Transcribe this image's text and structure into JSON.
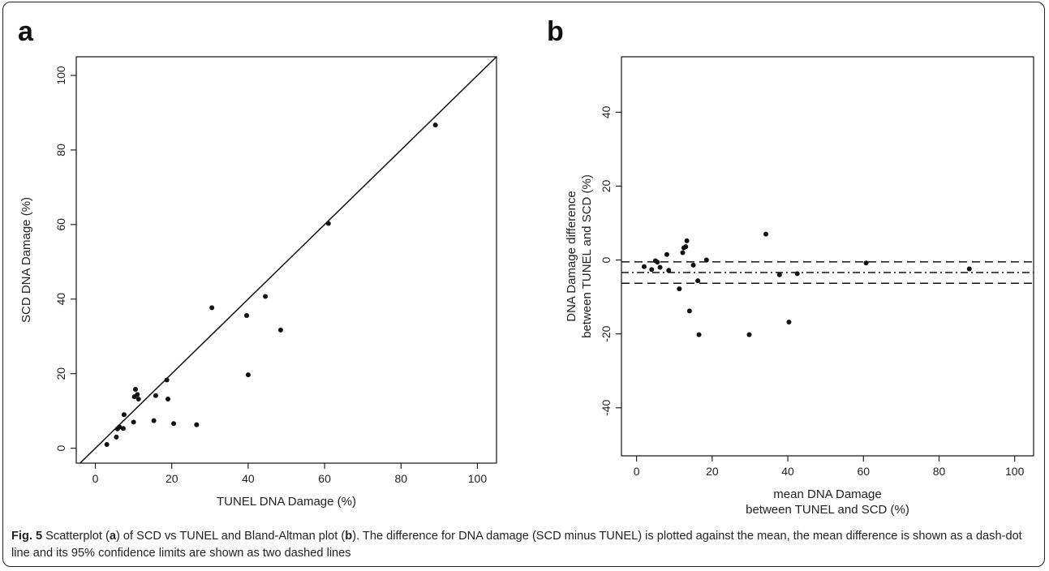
{
  "chart_data": [
    {
      "panel": "a",
      "type": "scatter",
      "xlabel": "TUNEL DNA Damage (%)",
      "ylabel": "SCD DNA Damage (%)",
      "xlim": [
        -5,
        105
      ],
      "ylim": [
        -4,
        105
      ],
      "xticks": [
        0,
        20,
        40,
        60,
        80,
        100
      ],
      "yticks": [
        0,
        20,
        40,
        60,
        80,
        100
      ],
      "grid": false,
      "reference_line": {
        "type": "identity",
        "slope": 1,
        "intercept": 0
      },
      "points": [
        {
          "x": 3,
          "y": 1
        },
        {
          "x": 5.5,
          "y": 3
        },
        {
          "x": 5.8,
          "y": 5.2
        },
        {
          "x": 6.3,
          "y": 5.7
        },
        {
          "x": 7.3,
          "y": 5.3
        },
        {
          "x": 7.5,
          "y": 9
        },
        {
          "x": 10,
          "y": 7
        },
        {
          "x": 10.2,
          "y": 13.8
        },
        {
          "x": 10.5,
          "y": 15.8
        },
        {
          "x": 11,
          "y": 14.4
        },
        {
          "x": 11.3,
          "y": 13.2
        },
        {
          "x": 15.3,
          "y": 7.4
        },
        {
          "x": 15.8,
          "y": 14.1
        },
        {
          "x": 18.7,
          "y": 18.3
        },
        {
          "x": 19,
          "y": 13.2
        },
        {
          "x": 20.5,
          "y": 6.6
        },
        {
          "x": 26.5,
          "y": 6.3
        },
        {
          "x": 30.5,
          "y": 37.7
        },
        {
          "x": 39.6,
          "y": 35.6
        },
        {
          "x": 40,
          "y": 19.7
        },
        {
          "x": 44.5,
          "y": 40.7
        },
        {
          "x": 48.5,
          "y": 31.7
        },
        {
          "x": 61,
          "y": 60.3
        },
        {
          "x": 89,
          "y": 86.7
        }
      ]
    },
    {
      "panel": "b",
      "type": "scatter",
      "xlabel": "mean DNA Damage between TUNEL and SCD (%)",
      "xlabel_lines": [
        "mean DNA Damage",
        "between TUNEL and SCD (%)"
      ],
      "ylabel": "DNA Damage difference between TUNEL and SCD (%)",
      "ylabel_lines": [
        "DNA Damage difference",
        "between TUNEL and SCD (%)"
      ],
      "xlim": [
        -4,
        105
      ],
      "ylim": [
        -53,
        55
      ],
      "xticks": [
        0,
        20,
        40,
        60,
        80,
        100
      ],
      "yticks": [
        -40,
        -20,
        0,
        20,
        40
      ],
      "grid": false,
      "mean_difference": -3.4,
      "limits": [
        -6.3,
        -0.5
      ],
      "points": [
        {
          "x": 2,
          "y": -1.8
        },
        {
          "x": 4,
          "y": -2.6
        },
        {
          "x": 5,
          "y": -0.2
        },
        {
          "x": 5.5,
          "y": -0.6
        },
        {
          "x": 6.2,
          "y": -2
        },
        {
          "x": 8,
          "y": 1.5
        },
        {
          "x": 8.5,
          "y": -2.8
        },
        {
          "x": 11.3,
          "y": -7.8
        },
        {
          "x": 12.2,
          "y": 2
        },
        {
          "x": 12.5,
          "y": 3.3
        },
        {
          "x": 13,
          "y": 3.6
        },
        {
          "x": 13.3,
          "y": 5.2
        },
        {
          "x": 14,
          "y": -13.8
        },
        {
          "x": 15,
          "y": -1.4
        },
        {
          "x": 16.2,
          "y": -5.6
        },
        {
          "x": 16.5,
          "y": -20.2
        },
        {
          "x": 18.5,
          "y": 0
        },
        {
          "x": 29.8,
          "y": -20.2
        },
        {
          "x": 34.2,
          "y": 7
        },
        {
          "x": 37.8,
          "y": -4
        },
        {
          "x": 40.3,
          "y": -16.8
        },
        {
          "x": 42.5,
          "y": -3.7
        },
        {
          "x": 60.7,
          "y": -0.8
        },
        {
          "x": 88,
          "y": -2.4
        }
      ]
    }
  ],
  "caption": {
    "label": "Fig. 5",
    "text": " Scatterplot (a) of SCD vs TUNEL and Bland-Altman plot (b). The difference for DNA damage (SCD minus TUNEL) is plotted against the mean, the mean difference is shown as a dash-dot line and its 95% confidence limits are shown as two dashed lines"
  }
}
